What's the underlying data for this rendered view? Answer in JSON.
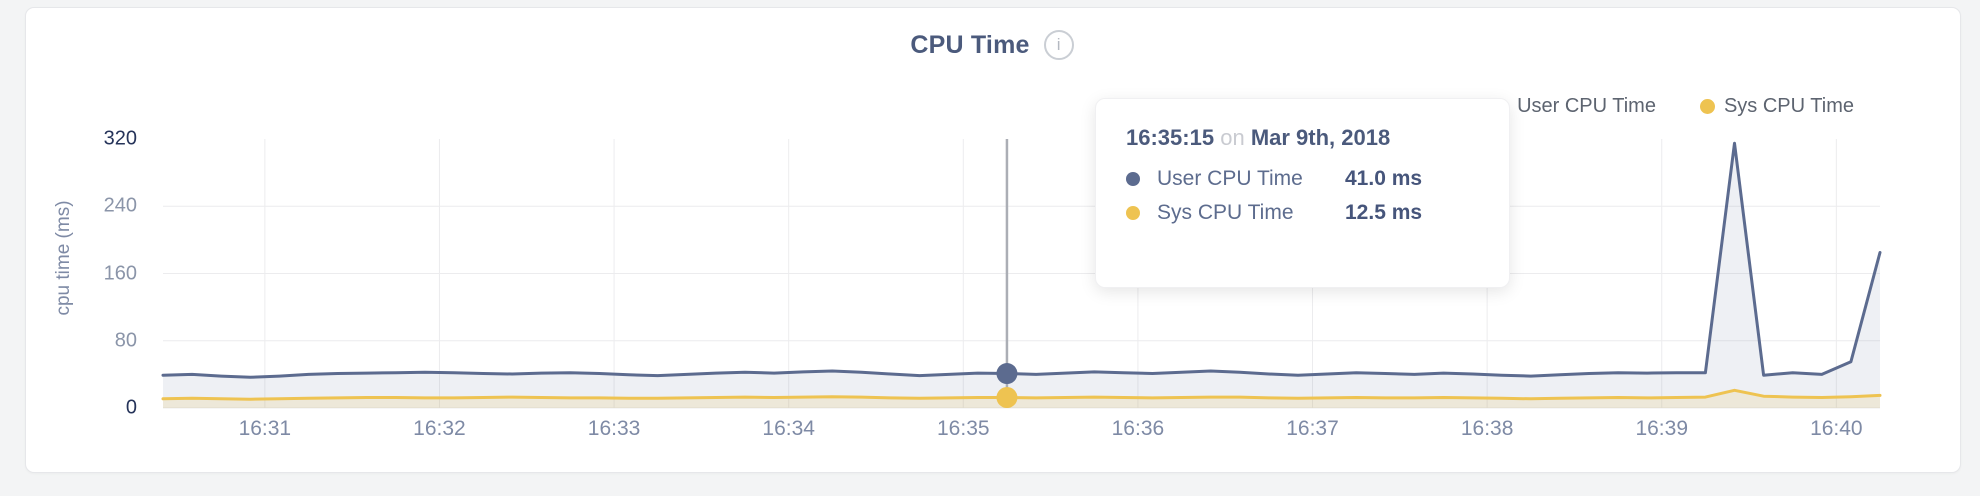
{
  "header": {
    "title": "CPU Time",
    "info_glyph": "i"
  },
  "legend": {
    "items": [
      {
        "label": "User CPU Time",
        "color": "#5c6b8f"
      },
      {
        "label": "Sys CPU Time",
        "color": "#eec351"
      }
    ]
  },
  "tooltip": {
    "time": "16:35:15",
    "connector": "on",
    "date": "Mar 9th, 2018",
    "rows": [
      {
        "label": "User CPU Time",
        "value": "41.0 ms",
        "color": "#5c6b8f"
      },
      {
        "label": "Sys CPU Time",
        "value": "12.5 ms",
        "color": "#eec351"
      }
    ]
  },
  "colors": {
    "grid": "#ececee",
    "crosshair": "#abaeb5",
    "ytick_normal": "#8b95a9",
    "ytick_strong": "#26345a"
  },
  "chart_data": {
    "type": "area",
    "title": "CPU Time",
    "xlabel": "",
    "ylabel": "cpu time (ms)",
    "ylim": [
      0,
      320
    ],
    "yticks": [
      0,
      80,
      160,
      240,
      320
    ],
    "emphasized_yticks": [
      0,
      320
    ],
    "xticks": [
      "16:31",
      "16:32",
      "16:33",
      "16:34",
      "16:35",
      "16:36",
      "16:37",
      "16:38",
      "16:39",
      "16:40"
    ],
    "x_start_time": "16:30:25",
    "x_interval_seconds": 10,
    "grid": true,
    "legend_position": "top-right",
    "series": [
      {
        "name": "User CPU Time",
        "color": "#5c6b8f",
        "fill_alpha": 0.1,
        "values": [
          39,
          40,
          38,
          36.5,
          38,
          40,
          41,
          41.5,
          42,
          42.5,
          42,
          41,
          40.5,
          41.5,
          42,
          41,
          39.5,
          38.5,
          40,
          41.5,
          42.5,
          41.5,
          43,
          44,
          42.5,
          40.5,
          38.5,
          40,
          41.5,
          41,
          40,
          41.5,
          43,
          42,
          41,
          42.5,
          44,
          42.5,
          40.5,
          39,
          40.5,
          42,
          41,
          40,
          41.5,
          40.5,
          39,
          38,
          39.5,
          41,
          42,
          41.5,
          42,
          42,
          315,
          39,
          42,
          40,
          55,
          185
        ]
      },
      {
        "name": "Sys CPU Time",
        "color": "#eec351",
        "fill_alpha": 0.16,
        "values": [
          11,
          11.5,
          11,
          10.5,
          11,
          11.5,
          12,
          12.5,
          12.5,
          12,
          12,
          12.5,
          13,
          12.5,
          12,
          12,
          11.5,
          11.5,
          12,
          12.5,
          13,
          12.5,
          13,
          13.5,
          13,
          12,
          11.5,
          12,
          12.5,
          12.5,
          12,
          12.5,
          13,
          12.5,
          12,
          12.5,
          13,
          13,
          12,
          11.5,
          12,
          12.5,
          12,
          12,
          12.5,
          12,
          11.5,
          11,
          11.5,
          12,
          12.5,
          12,
          12.5,
          13,
          21,
          14,
          13,
          12.5,
          13.5,
          15
        ]
      }
    ],
    "selected_point": {
      "index": 29,
      "time": "16:35:15",
      "date": "Mar 9th, 2018",
      "user_cpu_ms": 41.0,
      "sys_cpu_ms": 12.5
    }
  }
}
